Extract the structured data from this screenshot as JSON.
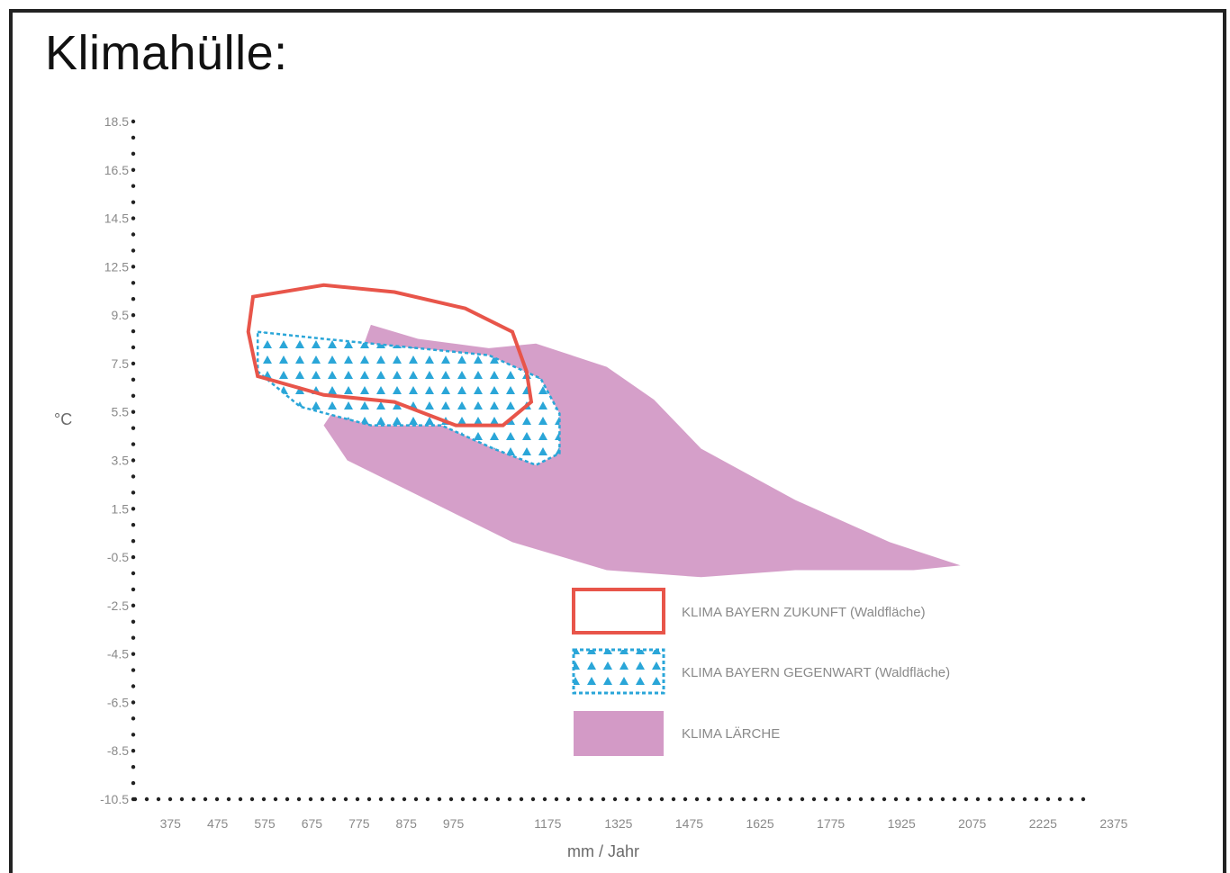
{
  "title": "Klimahülle:",
  "chart_data": {
    "type": "area",
    "xlabel": "mm / Jahr",
    "ylabel": "°C",
    "x_ticks": [
      "375",
      "475",
      "575",
      "675",
      "775",
      "875",
      "975",
      "1175",
      "1325",
      "1475",
      "1625",
      "1775",
      "1925",
      "2075",
      "2225",
      "2375"
    ],
    "y_ticks": [
      "18.5",
      "16.5",
      "14.5",
      "12.5",
      "9.5",
      "7.5",
      "5.5",
      "3.5",
      "1.5",
      "-0.5",
      "-2.5",
      "-4.5",
      "-6.5",
      "-8.5",
      "-10.5"
    ],
    "xlim": [
      300,
      2400
    ],
    "ylim": [
      -10.5,
      18.5
    ],
    "grid": false,
    "legend_position": "bottom-right",
    "series": [
      {
        "name": "KLIMA BAYERN ZUKUNFT (Waldfläche)",
        "style": "outline",
        "color": "#e8554a",
        "points": [
          [
            550,
            11.0
          ],
          [
            700,
            11.5
          ],
          [
            850,
            11.2
          ],
          [
            1000,
            10.5
          ],
          [
            1100,
            9.5
          ],
          [
            1130,
            7.8
          ],
          [
            1140,
            6.5
          ],
          [
            1080,
            5.5
          ],
          [
            980,
            5.5
          ],
          [
            850,
            6.5
          ],
          [
            700,
            6.8
          ],
          [
            560,
            7.6
          ],
          [
            540,
            9.5
          ]
        ]
      },
      {
        "name": "KLIMA BAYERN GEGENWART (Waldfläche)",
        "style": "dotted-hatch",
        "color": "#2aa6d8",
        "points": [
          [
            560,
            9.5
          ],
          [
            700,
            9.2
          ],
          [
            900,
            8.8
          ],
          [
            1050,
            8.5
          ],
          [
            1160,
            7.5
          ],
          [
            1200,
            6.0
          ],
          [
            1200,
            4.3
          ],
          [
            1150,
            3.8
          ],
          [
            1060,
            4.5
          ],
          [
            950,
            5.5
          ],
          [
            800,
            5.5
          ],
          [
            650,
            6.3
          ],
          [
            560,
            7.8
          ]
        ]
      },
      {
        "name": "KLIMA LÄRCHE",
        "style": "filled",
        "color": "#d39ac6",
        "points": [
          [
            800,
            9.8
          ],
          [
            900,
            9.2
          ],
          [
            1050,
            8.8
          ],
          [
            1150,
            9.0
          ],
          [
            1300,
            8.0
          ],
          [
            1400,
            6.6
          ],
          [
            1500,
            4.5
          ],
          [
            1700,
            2.3
          ],
          [
            1900,
            0.5
          ],
          [
            2050,
            -0.5
          ],
          [
            1950,
            -0.7
          ],
          [
            1700,
            -0.7
          ],
          [
            1500,
            -1.0
          ],
          [
            1300,
            -0.7
          ],
          [
            1100,
            0.5
          ],
          [
            900,
            2.5
          ],
          [
            750,
            4.0
          ],
          [
            700,
            5.5
          ],
          [
            750,
            7.0
          ]
        ]
      }
    ]
  }
}
